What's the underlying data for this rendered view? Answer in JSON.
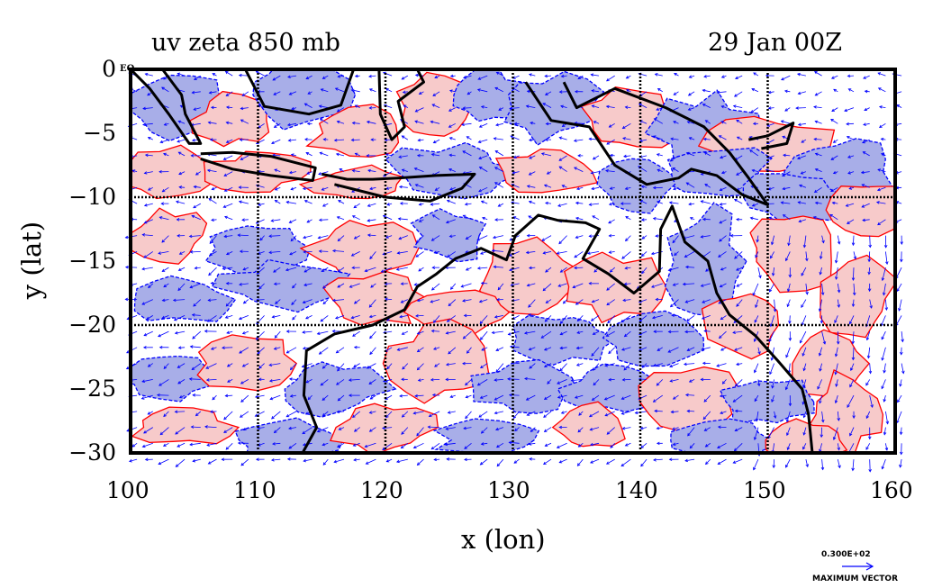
{
  "plot": {
    "title_left": "uv zeta 850 mb",
    "title_right": "29 Jan 00Z",
    "xlabel": "x (lon)",
    "ylabel": "y (lat)",
    "eq_label": "EQ",
    "x_ticks": [
      "100",
      "110",
      "120",
      "130",
      "140",
      "150",
      "160"
    ],
    "y_ticks": [
      "0",
      "−5",
      "−10",
      "−15",
      "−20",
      "−25",
      "−30"
    ],
    "legend_value": "0.300E+02",
    "legend_caption": "MAXIMUM VECTOR"
  },
  "map": {
    "lon_range": [
      100,
      160
    ],
    "lat_range": [
      -30,
      0
    ],
    "grid_lons": [
      110,
      120,
      130,
      140,
      150
    ],
    "grid_lats": [
      -10,
      -20
    ],
    "colors": {
      "positive_fill": "#f7caca",
      "negative_fill": "#a8aee8",
      "positive_contour": "#ff0000",
      "negative_contour": "#0000ff",
      "vector": "#0000ff",
      "coast": "#000000"
    }
  }
}
